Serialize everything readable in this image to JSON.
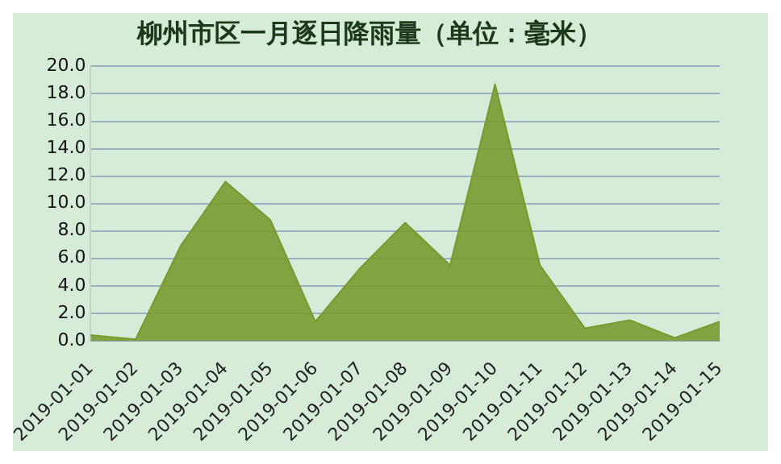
{
  "chart_data": {
    "type": "area",
    "title": "柳州市区一月逐日降雨量（单位：毫米）",
    "categories": [
      "2019-01-01",
      "2019-01-02",
      "2019-01-03",
      "2019-01-04",
      "2019-01-05",
      "2019-01-06",
      "2019-01-07",
      "2019-01-08",
      "2019-01-09",
      "2019-01-10",
      "2019-01-11",
      "2019-01-12",
      "2019-01-13",
      "2019-01-14",
      "2019-01-15"
    ],
    "values": [
      0.4,
      0.1,
      6.9,
      11.6,
      8.8,
      1.4,
      5.3,
      8.6,
      5.5,
      18.7,
      5.5,
      0.9,
      1.5,
      0.2,
      1.4
    ],
    "color": "#7a9a30",
    "ylim": [
      0,
      20
    ],
    "yticks": [
      {
        "value": 0,
        "label": "0.0"
      },
      {
        "value": 2,
        "label": "2.0"
      },
      {
        "value": 4,
        "label": "4.0"
      },
      {
        "value": 6,
        "label": "6.0"
      },
      {
        "value": 8,
        "label": "8.0"
      },
      {
        "value": 10,
        "label": "10.0"
      },
      {
        "value": 12,
        "label": "12.0"
      },
      {
        "value": 14,
        "label": "14.0"
      },
      {
        "value": 16,
        "label": "16.0"
      },
      {
        "value": 18,
        "label": "18.0"
      },
      {
        "value": 20,
        "label": "20.0"
      }
    ],
    "grid": "y",
    "legend": false,
    "marker": "none"
  }
}
